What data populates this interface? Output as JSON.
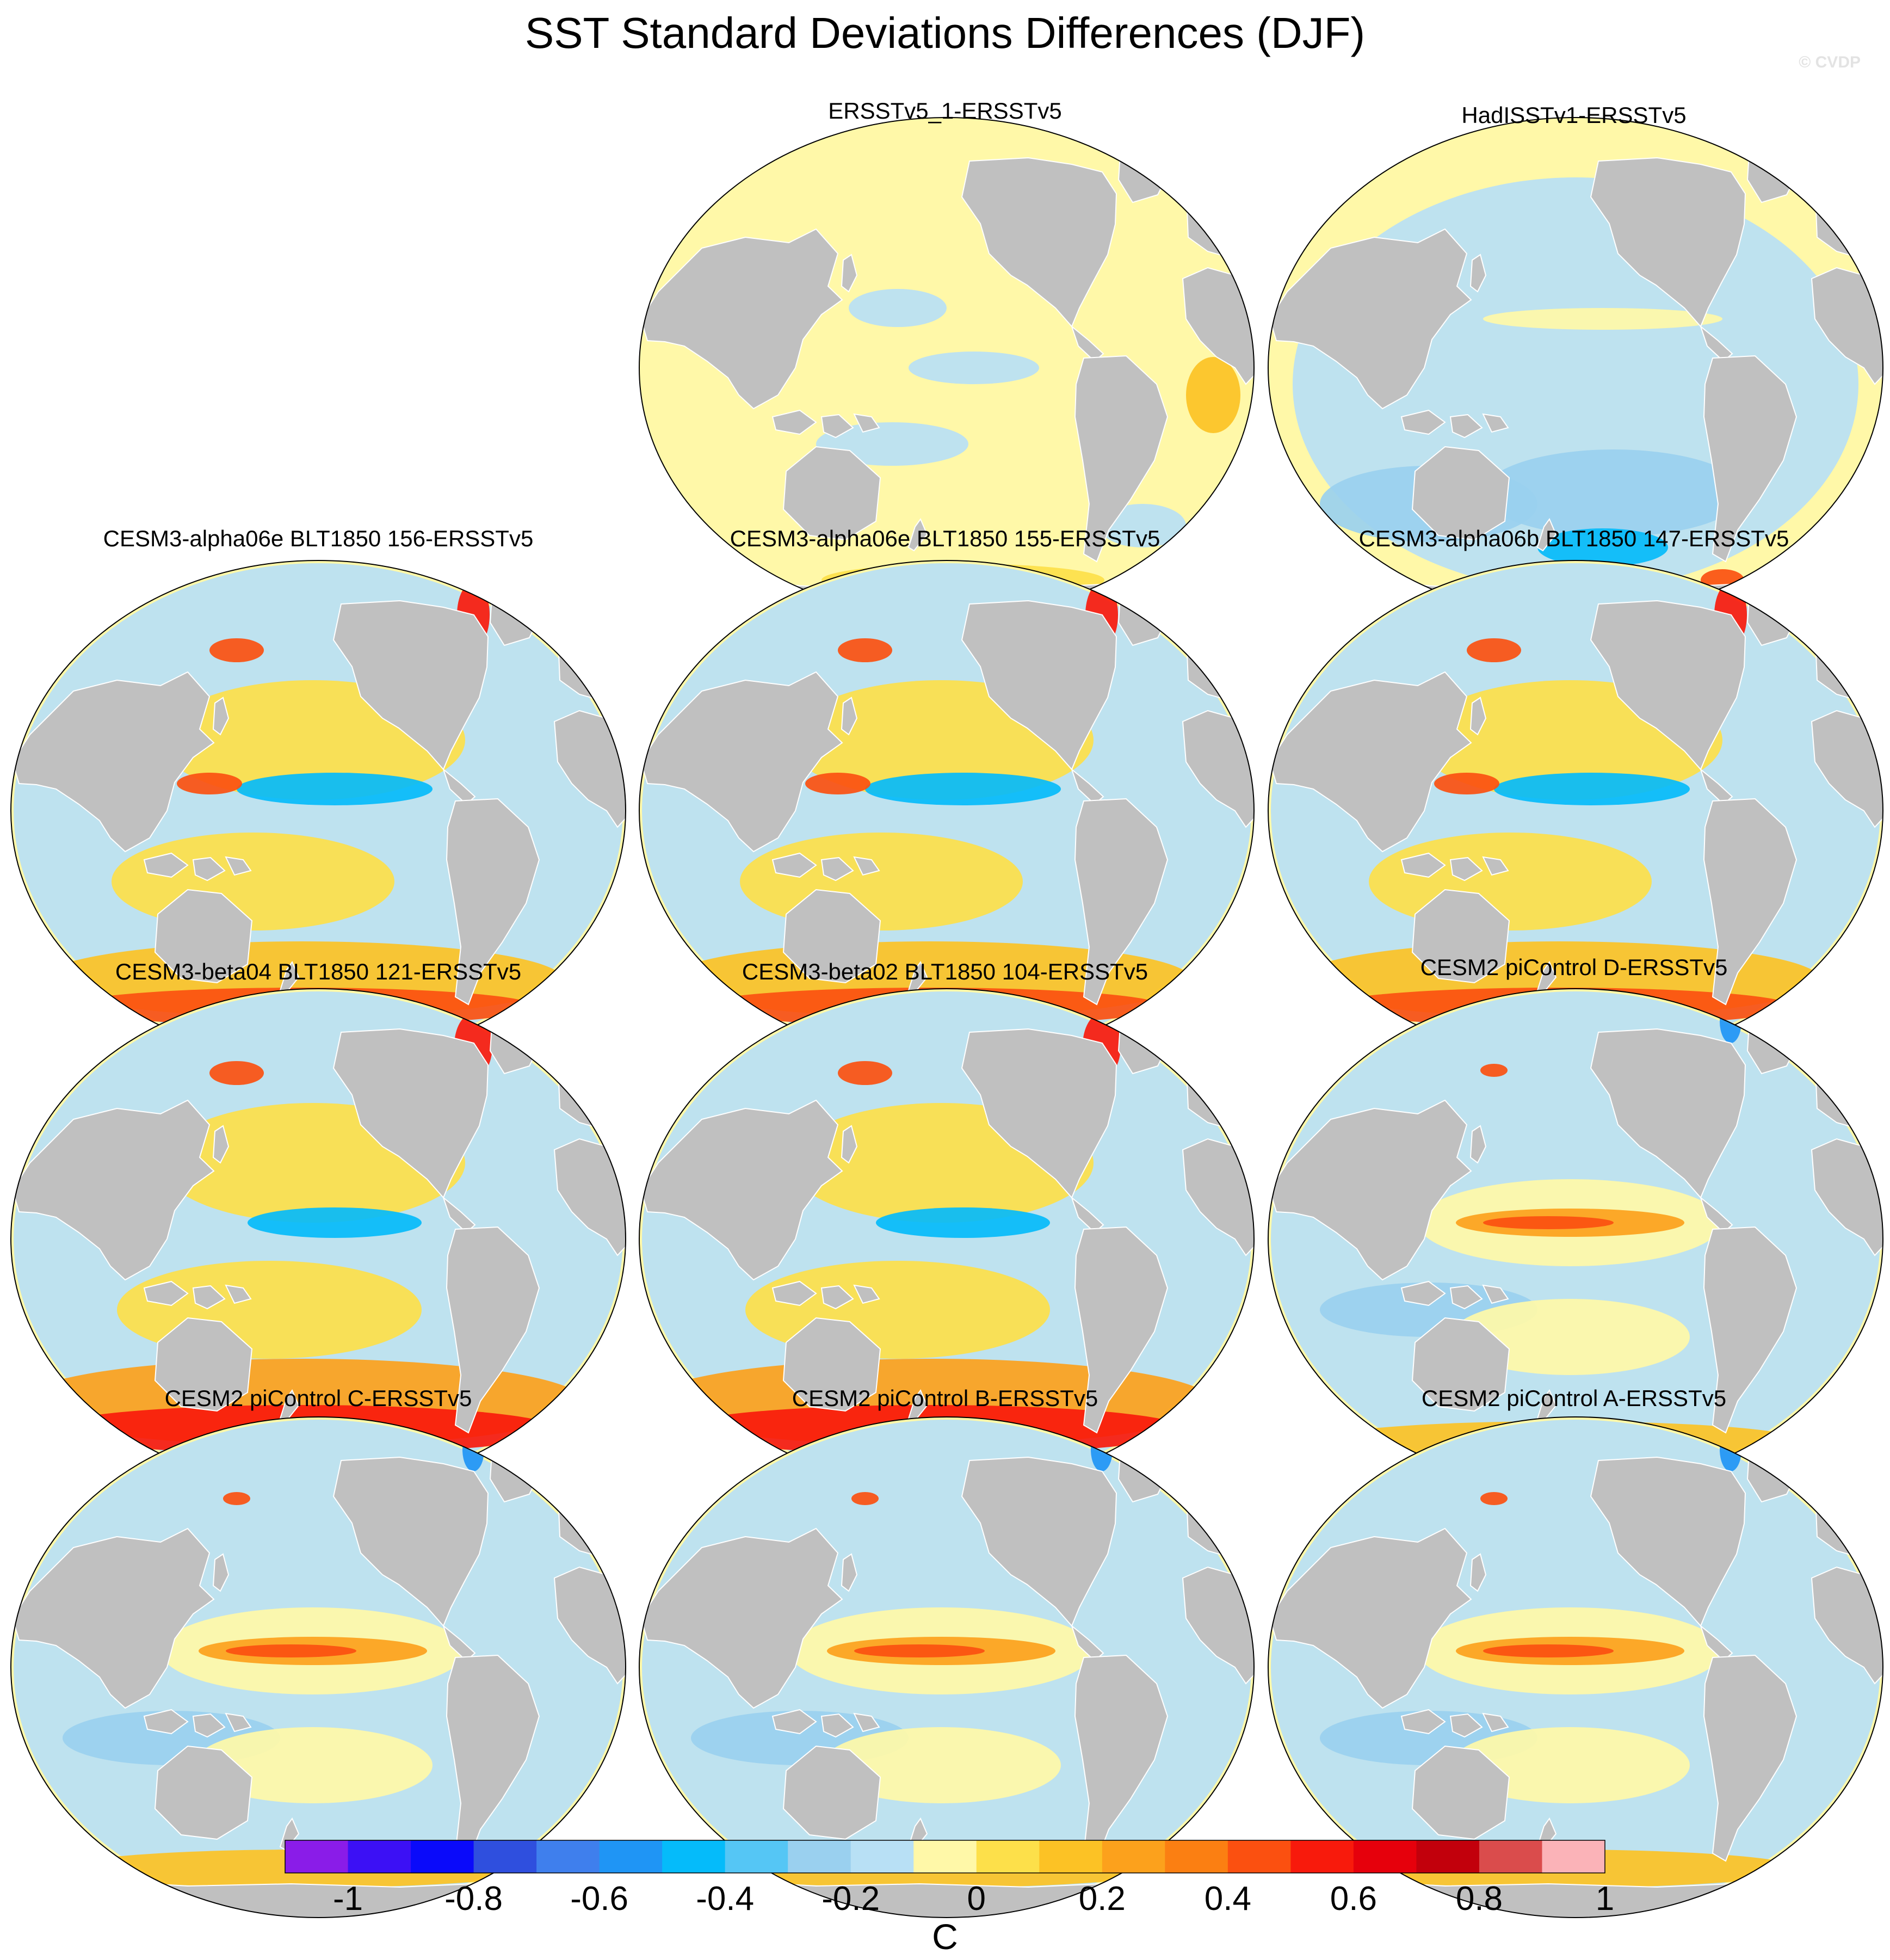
{
  "title": "SST Standard Deviations Differences (DJF)",
  "watermark": "© CVDP",
  "panels": [
    {
      "title": "ERSSTv5_1-ERSSTv5",
      "variant": "near-zero"
    },
    {
      "title": "HadISSTv1-ERSSTv5",
      "variant": "negative"
    },
    {
      "title": "CESM3-alpha06e BLT1850 156-ERSSTv5",
      "variant": "southern-warm"
    },
    {
      "title": "CESM3-alpha06e BLT1850 155-ERSSTv5",
      "variant": "southern-warm"
    },
    {
      "title": "CESM3-alpha06b BLT1850 147-ERSSTv5",
      "variant": "southern-warm"
    },
    {
      "title": "CESM3-beta04 BLT1850 121-ERSSTv5",
      "variant": "southern-strong"
    },
    {
      "title": "CESM3-beta02 BLT1850 104-ERSSTv5",
      "variant": "southern-strong"
    },
    {
      "title": "CESM2 piControl D-ERSSTv5",
      "variant": "enso"
    },
    {
      "title": "CESM2 piControl C-ERSSTv5",
      "variant": "enso"
    },
    {
      "title": "CESM2 piControl B-ERSSTv5",
      "variant": "enso"
    },
    {
      "title": "CESM2 piControl A-ERSSTv5",
      "variant": "enso"
    }
  ],
  "colorbar": {
    "colors": [
      "#8a1ce8",
      "#3c10f5",
      "#0a0afa",
      "#2f4fde",
      "#3f7fed",
      "#1f95f5",
      "#05bbfa",
      "#55c6f5",
      "#9ad0ef",
      "#b8e0f5",
      "#fff8a8",
      "#fde04a",
      "#fcc225",
      "#fca11c",
      "#fb7f12",
      "#fb5010",
      "#f81a0c",
      "#e6000c",
      "#c2000c",
      "#da4c4c",
      "#fbb3b8"
    ],
    "tick_labels": [
      "-1",
      "-0.8",
      "-0.6",
      "-0.4",
      "-0.2",
      "0",
      "0.2",
      "0.4",
      "0.6",
      "0.8",
      "1"
    ],
    "units": "C"
  },
  "land_color": "#c0c0c0",
  "ocean_neutral_color": "#fff8a8"
}
